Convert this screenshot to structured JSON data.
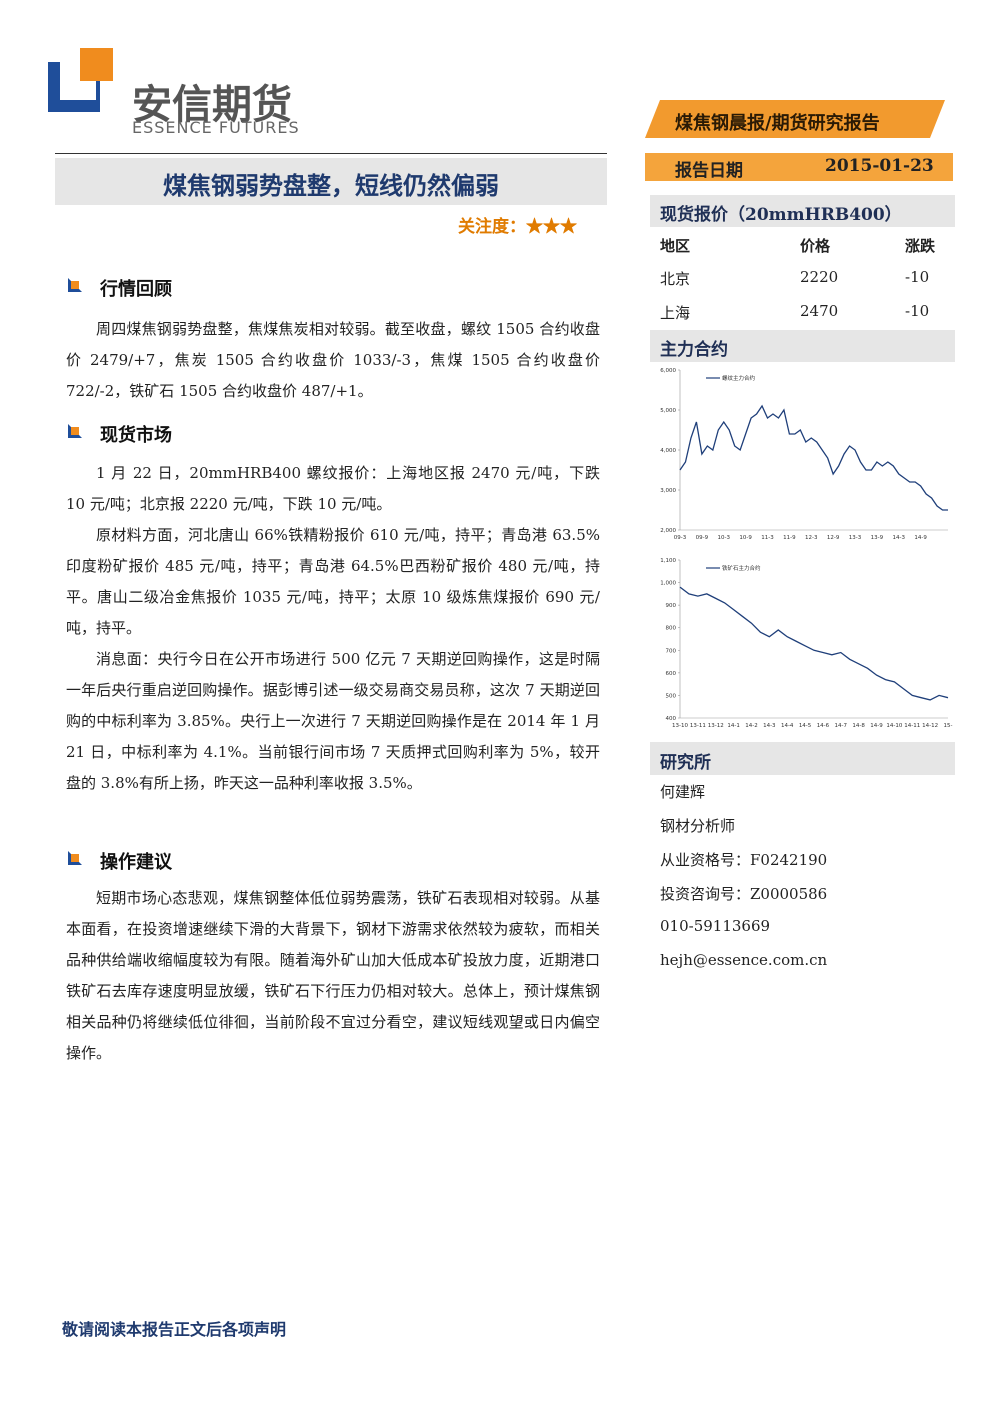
{
  "header": {
    "company": "安信期货",
    "company_en": "ESSENCE FUTURES",
    "banner": "煤焦钢晨报/期货研究报告",
    "date_label": "报告日期",
    "date": "2015-01-23"
  },
  "title": "煤焦钢弱势盘整，短线仍然偏弱",
  "attention": "关注度：★★★",
  "sections": [
    {
      "heading": "行情回顾",
      "paragraphs": [
        "周四煤焦钢弱势盘整，焦煤焦炭相对较弱。截至收盘，螺纹 1505 合约收盘价 2479/+7，焦炭 1505 合约收盘价 1033/-3，焦煤 1505 合约收盘价 722/-2，铁矿石 1505 合约收盘价 487/+1。"
      ]
    },
    {
      "heading": "现货市场",
      "paragraphs": [
        "1 月 22 日，20mmHRB400 螺纹报价：上海地区报 2470 元/吨，下跌 10 元/吨；北京报 2220 元/吨，下跌 10 元/吨。",
        "原材料方面，河北唐山 66%铁精粉报价 610 元/吨，持平；青岛港 63.5%印度粉矿报价 485 元/吨，持平；青岛港 64.5%巴西粉矿报价 480 元/吨，持平。唐山二级冶金焦报价 1035 元/吨，持平；太原 10 级炼焦煤报价 690 元/吨，持平。",
        "消息面：央行今日在公开市场进行 500 亿元 7 天期逆回购操作，这是时隔一年后央行重启逆回购操作。据彭博引述一级交易商交易员称，这次 7 天期逆回购的中标利率为 3.85%。央行上一次进行 7 天期逆回购操作是在 2014 年 1 月 21 日，中标利率为 4.1%。当前银行间市场 7 天质押式回购利率为 5%，较开盘的 3.8%有所上扬，昨天这一品种利率收报 3.5%。"
      ]
    },
    {
      "heading": "操作建议",
      "paragraphs": [
        "短期市场心态悲观，煤焦钢整体低位弱势震荡，铁矿石表现相对较弱。从基本面看，在投资增速继续下滑的大背景下，钢材下游需求依然较为疲软，而相关品种供给端收缩幅度较为有限。随着海外矿山加大低成本矿投放力度，近期港口铁矿石去库存速度明显放缓，铁矿石下行压力仍相对较大。总体上，预计煤焦钢相关品种仍将继续低位徘徊，当前阶段不宜过分看空，建议短线观望或日内偏空操作。"
      ]
    }
  ],
  "spot": {
    "title": "现货报价（20mmHRB400）",
    "headers": [
      "地区",
      "价格",
      "涨跌"
    ],
    "rows": [
      [
        "北京",
        2220,
        -10
      ],
      [
        "上海",
        2470,
        -10
      ]
    ]
  },
  "contracts_title": "主力合约",
  "chart_data": [
    {
      "type": "line",
      "categories": [
        "09-3",
        null,
        null,
        null,
        "09-9",
        null,
        null,
        null,
        "10-3",
        null,
        null,
        null,
        "10-9",
        null,
        null,
        null,
        "11-3",
        null,
        null,
        null,
        "11-9",
        null,
        null,
        null,
        "12-3",
        null,
        null,
        null,
        "12-9",
        null,
        null,
        null,
        "13-3",
        null,
        null,
        null,
        "13-9",
        null,
        null,
        null,
        "14-3",
        null,
        null,
        null,
        "14-9",
        null,
        null,
        null,
        null,
        null
      ],
      "series": [
        {
          "name": "螺纹主力合约",
          "color": "#1f3f7a",
          "values": [
            3500,
            3700,
            4300,
            4700,
            3900,
            4100,
            4000,
            4500,
            4700,
            4500,
            4100,
            4000,
            4400,
            4800,
            4900,
            5100,
            4800,
            4900,
            4800,
            5000,
            4400,
            4400,
            4500,
            4200,
            4300,
            4200,
            4000,
            3800,
            3400,
            3600,
            3900,
            4100,
            4000,
            3700,
            3500,
            3500,
            3700,
            3600,
            3700,
            3600,
            3400,
            3300,
            3200,
            3200,
            3100,
            2900,
            2800,
            2600,
            2500,
            2500
          ]
        }
      ],
      "ylim": [
        2000,
        6000
      ],
      "yticks": [
        {
          "value": 2000,
          "label": "2,000"
        },
        {
          "value": 3000,
          "label": "3,000"
        },
        {
          "value": 4000,
          "label": "4,000"
        },
        {
          "value": 5000,
          "label": "5,000"
        },
        {
          "value": 6000,
          "label": "6,000"
        }
      ],
      "grid": false
    },
    {
      "type": "line",
      "categories": [
        "13-10",
        null,
        "13-11",
        null,
        "13-12",
        null,
        "14-1",
        null,
        "14-2",
        null,
        "14-3",
        null,
        "14-4",
        null,
        "14-5",
        null,
        "14-6",
        null,
        "14-7",
        null,
        "14-8",
        null,
        "14-9",
        null,
        "14-10",
        null,
        "14-11",
        null,
        "14-12",
        null,
        "15-"
      ],
      "series": [
        {
          "name": "铁矿石主力合约",
          "color": "#1f3f7a",
          "values": [
            980,
            950,
            940,
            950,
            930,
            910,
            880,
            850,
            820,
            780,
            760,
            790,
            760,
            740,
            720,
            700,
            690,
            680,
            690,
            660,
            640,
            620,
            590,
            570,
            560,
            530,
            500,
            490,
            480,
            500,
            490
          ]
        }
      ],
      "ylim": [
        400,
        1100
      ],
      "yticks": [
        400,
        500,
        600,
        700,
        800,
        900,
        {
          "value": 1000,
          "label": "1,000"
        },
        {
          "value": 1100,
          "label": "1,100"
        }
      ],
      "grid": false
    }
  ],
  "research": {
    "title": "研究所",
    "lines": [
      "何建辉",
      "钢材分析师",
      "从业资格号：F0242190",
      "投资咨询号：Z0000586",
      "010-59113669",
      "hejh@essence.com.cn"
    ]
  },
  "footer": "敬请阅读本报告正文后各项声明"
}
